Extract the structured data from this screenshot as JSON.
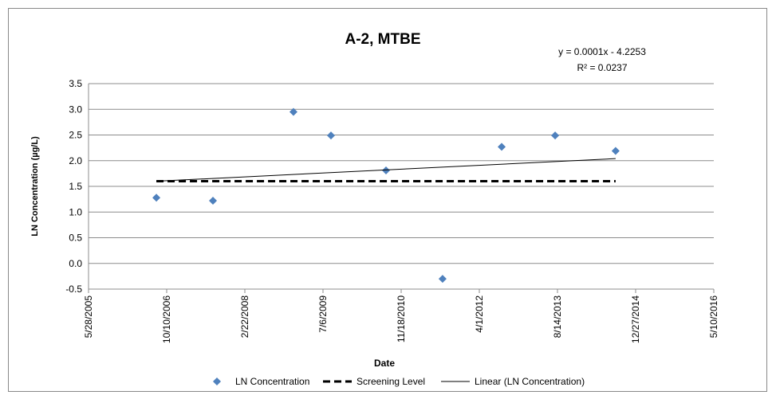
{
  "chart_data": {
    "type": "scatter",
    "title": "A-2, MTBE",
    "annotations": [
      "y = 0.0001x - 4.2253",
      "R² = 0.0237"
    ],
    "x_label": "Date",
    "y_label": "LN Concentration (µg/L)",
    "xlim": [
      38500,
      42500
    ],
    "xticks": [
      {
        "value": 38500,
        "label": "5/28/2005"
      },
      {
        "value": 39000,
        "label": "10/10/2006"
      },
      {
        "value": 39500,
        "label": "2/22/2008"
      },
      {
        "value": 40000,
        "label": "7/6/2009"
      },
      {
        "value": 40500,
        "label": "11/18/2010"
      },
      {
        "value": 41000,
        "label": "4/1/2012"
      },
      {
        "value": 41500,
        "label": "8/14/2013"
      },
      {
        "value": 42000,
        "label": "12/27/2014"
      },
      {
        "value": 42500,
        "label": "5/10/2016"
      }
    ],
    "ylim": [
      -0.5,
      3.5
    ],
    "yticks": [
      -0.5,
      {
        "value": 0,
        "label": "0.0"
      },
      0.5,
      {
        "value": 1,
        "label": "1.0"
      },
      1.5,
      {
        "value": 2,
        "label": "2.0"
      },
      2.5,
      {
        "value": 3,
        "label": "3.0"
      },
      3.5
    ],
    "grid": true,
    "series": [
      {
        "name": "LN Concentration",
        "color": "#4f81bd",
        "mode": "markers",
        "x": [
          38934,
          39296,
          39811,
          40051,
          40403,
          40765,
          41143,
          41485,
          41872
        ],
        "values": [
          1.28,
          1.22,
          2.95,
          2.49,
          1.81,
          -0.3,
          2.27,
          2.49,
          2.19
        ]
      },
      {
        "name": "Screening Level",
        "color": "#000000",
        "mode": "dashed",
        "x": [
          38934,
          41872
        ],
        "values": [
          1.6,
          1.6
        ]
      },
      {
        "name": "Linear (LN Concentration)",
        "color": "#000000",
        "mode": "solid",
        "x": [
          38934,
          41872
        ],
        "values": [
          1.6,
          2.04
        ]
      }
    ]
  }
}
